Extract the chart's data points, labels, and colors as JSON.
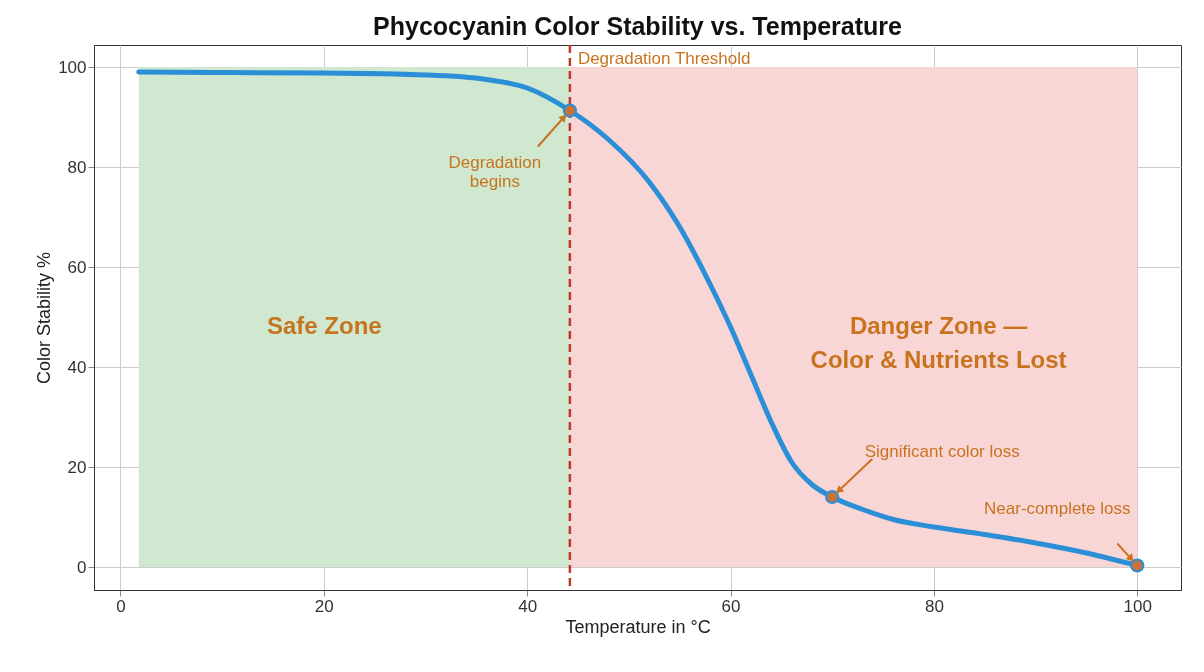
{
  "chart_data": {
    "type": "line",
    "title": "Phycocyanin Color Stability vs. Temperature",
    "xlabel": "Temperature in °C",
    "ylabel": "Color Stability %",
    "xlim": [
      -2.6,
      104.3
    ],
    "ylim": [
      -4.6,
      104.4
    ],
    "xticks": [
      0,
      20,
      40,
      60,
      80,
      100
    ],
    "yticks": [
      0,
      20,
      40,
      60,
      80,
      100
    ],
    "grid": true,
    "series": [
      {
        "color": "#2b8fd8",
        "x": [
          1.8,
          10,
          20,
          30,
          36,
          40,
          44.2,
          48,
          52,
          55,
          58,
          60,
          62,
          64,
          66,
          68,
          70,
          73,
          76,
          80,
          85,
          90,
          95,
          100
        ],
        "values": [
          99,
          98.9,
          98.8,
          98.4,
          97.5,
          95.8,
          91.3,
          85.5,
          77,
          68,
          56.5,
          48,
          38.5,
          29,
          21,
          16.5,
          14,
          11.5,
          9.5,
          8,
          6.5,
          4.8,
          2.8,
          0.3
        ]
      },
      {
        "type": "scatter",
        "marker": "circle",
        "color": "#c8733a",
        "x": [
          44.2,
          70,
          100
        ],
        "values": [
          91.3,
          14,
          0.3
        ]
      }
    ],
    "bands": [
      {
        "axis": "x",
        "from": 1.8,
        "to": 44.2,
        "color": "#cfe8cf",
        "label": "Safe Zone"
      },
      {
        "axis": "x",
        "from": 44.2,
        "to": 100,
        "color": "#f9d6d6",
        "label": "Danger Zone — Color & Nutrients Lost"
      }
    ],
    "ref_lines": [
      {
        "axis": "x",
        "value": 44.2,
        "label": "Degradation Threshold",
        "color": "#c0392b",
        "line_style": "dashed"
      }
    ],
    "annotations": [
      {
        "text": "Degradation begins",
        "x": 44.2,
        "y": 91.3
      },
      {
        "text": "Significant color loss",
        "x": 70,
        "y": 14
      },
      {
        "text": "Near-complete loss",
        "x": 100,
        "y": 0.3
      }
    ]
  }
}
